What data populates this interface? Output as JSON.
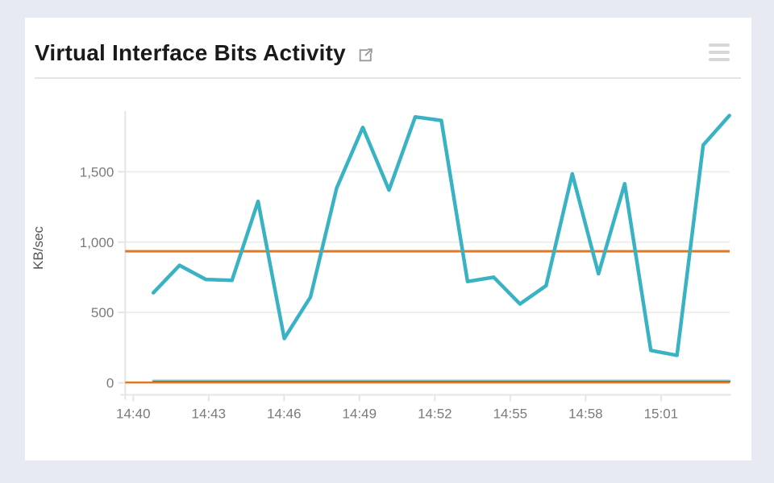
{
  "page": {
    "background": "#e7eaf2",
    "card_background": "#ffffff"
  },
  "header": {
    "title": "Virtual Interface Bits Activity",
    "title_color": "#1a1a1a",
    "external_link_icon": "external-link-icon",
    "menu_icon": "hamburger-menu-icon"
  },
  "chart_data": {
    "type": "line",
    "title": "Virtual Interface Bits Activity",
    "xlabel": "",
    "ylabel": "KB/sec",
    "legend": "none",
    "grid": "horizontal-only",
    "x_tick_labels": [
      "14:40",
      "14:43",
      "14:46",
      "14:49",
      "14:52",
      "14:55",
      "14:58",
      "15:01"
    ],
    "x_tick_minutes": [
      0,
      3,
      6,
      9,
      12,
      15,
      18,
      21
    ],
    "y_tick_labels": [
      "0",
      "500",
      "1,000",
      "1,500"
    ],
    "y_tick_values": [
      0,
      500,
      1000,
      1500
    ],
    "ylim": [
      0,
      1930
    ],
    "x_range_minutes": [
      -0.33,
      23.72
    ],
    "times": [
      "14:41",
      "14:42",
      "14:43",
      "14:44",
      "14:45",
      "14:46",
      "14:47",
      "14:48",
      "14:49",
      "14:50",
      "14:51",
      "14:52",
      "14:53",
      "14:54",
      "14:55",
      "14:56",
      "14:57",
      "14:58",
      "14:59",
      "15:00",
      "15:01",
      "15:02",
      "15:03"
    ],
    "series": [
      {
        "name": "primary-teal",
        "color": "#39b3c4",
        "width": 4.5,
        "values": [
          640,
          835,
          735,
          728,
          1290,
          315,
          610,
          1385,
          1815,
          1370,
          1890,
          1865,
          720,
          750,
          560,
          690,
          1485,
          775,
          1415,
          230,
          195,
          1690,
          1900
        ]
      },
      {
        "name": "flat-teal",
        "color": "#39b3c4",
        "width": 3.5,
        "opacity": 0.5,
        "constant": 14
      },
      {
        "name": "flat-green",
        "color": "#527a36",
        "width": 2.5,
        "constant": 8
      }
    ],
    "reference_lines": [
      {
        "name": "orange-threshold-high",
        "color": "#e2771f",
        "width": 3,
        "value": 935
      },
      {
        "name": "orange-threshold-low",
        "color": "#e2771f",
        "width": 2.5,
        "value": 2
      }
    ],
    "axis_color": "#e5e5e5",
    "grid_color": "#eeeeee",
    "tick_text_color": "#7b7b7b"
  }
}
